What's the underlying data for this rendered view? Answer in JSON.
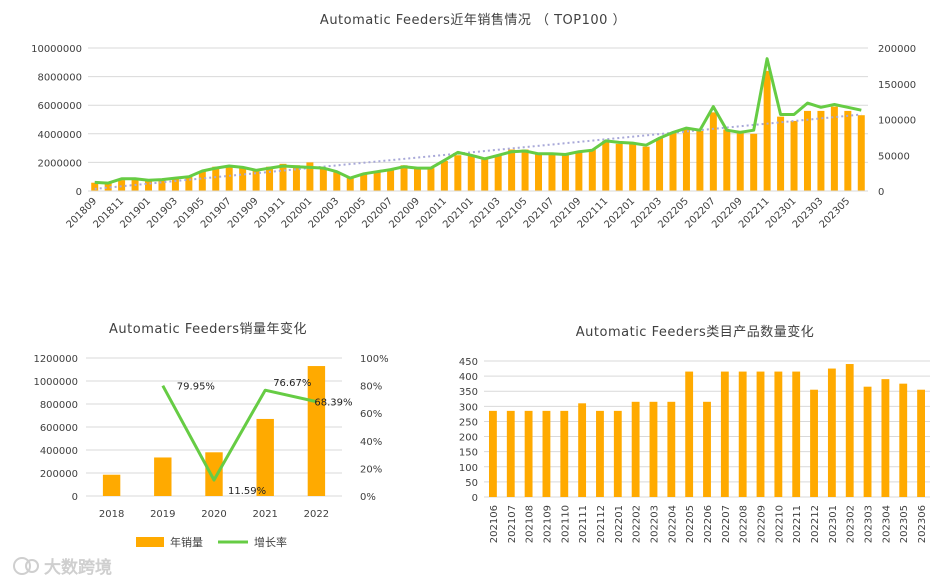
{
  "colors": {
    "bar": "#FFAA00",
    "line": "#66CC44",
    "trend": "#A8A8D8",
    "grid": "#D9D9D9"
  },
  "watermark": "大数跨境",
  "chart_data": [
    {
      "type": "bar+line",
      "title": "Automatic  Feeders近年销售情况 （ TOP100 ）",
      "categories": [
        "201809",
        "201810",
        "201811",
        "201812",
        "201901",
        "201902",
        "201903",
        "201904",
        "201905",
        "201906",
        "201907",
        "201908",
        "201909",
        "201910",
        "201911",
        "201912",
        "202001",
        "202002",
        "202003",
        "202004",
        "202005",
        "202006",
        "202007",
        "202008",
        "202009",
        "202010",
        "202011",
        "202012",
        "202101",
        "202102",
        "202103",
        "202104",
        "202105",
        "202106",
        "202107",
        "202108",
        "202109",
        "202110",
        "202111",
        "202112",
        "202201",
        "202202",
        "202203",
        "202204",
        "202205",
        "202206",
        "202207",
        "202208",
        "202209",
        "202210",
        "202211",
        "202212",
        "202301",
        "202302",
        "202303",
        "202304",
        "202305",
        "202306"
      ],
      "xtick_labels": [
        "201809",
        "201811",
        "201901",
        "201903",
        "201905",
        "201907",
        "201909",
        "201911",
        "202001",
        "202003",
        "202005",
        "202007",
        "202009",
        "202011",
        "202101",
        "202103",
        "202105",
        "202107",
        "202109",
        "202111",
        "202201",
        "202203",
        "202205",
        "202207",
        "202209",
        "202211",
        "202301",
        "202303",
        "202305"
      ],
      "bars": [
        580000,
        540000,
        760000,
        800000,
        760000,
        820000,
        900000,
        1000000,
        1400000,
        1700000,
        1800000,
        1700000,
        1500000,
        1700000,
        1900000,
        1800000,
        2000000,
        1600000,
        1300000,
        1000000,
        1200000,
        1300000,
        1500000,
        1800000,
        1600000,
        1600000,
        2100000,
        2500000,
        2500000,
        2200000,
        2500000,
        2900000,
        2900000,
        2600000,
        2600000,
        2600000,
        2700000,
        2900000,
        3500000,
        3300000,
        3300000,
        3100000,
        3700000,
        4100000,
        4300000,
        4200000,
        5500000,
        4300000,
        4100000,
        4000000,
        8400000,
        5200000,
        4900000,
        5600000,
        5600000,
        5900000,
        5600000,
        5300000
      ],
      "line": [
        12000,
        11000,
        17000,
        17000,
        15000,
        16000,
        18000,
        20000,
        28000,
        32000,
        35000,
        33000,
        29000,
        32000,
        35000,
        34000,
        33000,
        32000,
        27000,
        18000,
        24000,
        27000,
        30000,
        34000,
        32000,
        32000,
        43000,
        54000,
        50000,
        45000,
        50000,
        55000,
        56000,
        52000,
        52000,
        51000,
        55000,
        57000,
        70000,
        68000,
        67000,
        64000,
        74000,
        82000,
        88000,
        85000,
        118000,
        85000,
        82000,
        85000,
        185000,
        107000,
        107000,
        123000,
        117000,
        121000,
        117000,
        113000
      ],
      "y_left": {
        "ticks": [
          "0",
          "2000000",
          "4000000",
          "6000000",
          "8000000",
          "10000000"
        ],
        "min": 0,
        "max": 10000000
      },
      "y_right": {
        "ticks": [
          "0",
          "50000",
          "100000",
          "150000",
          "200000"
        ],
        "min": 0,
        "max": 200000
      },
      "trendline": true
    },
    {
      "type": "bar+line",
      "title": "Automatic  Feeders销量年变化",
      "categories": [
        "2018",
        "2019",
        "2020",
        "2021",
        "2022"
      ],
      "series": [
        {
          "name": "年销量",
          "type": "bar",
          "values": [
            185000,
            335000,
            380000,
            670000,
            1130000
          ]
        },
        {
          "name": "增长率",
          "type": "line",
          "values": [
            null,
            79.95,
            11.59,
            76.67,
            68.39
          ]
        }
      ],
      "data_labels": [
        "79.95%",
        "11.59%",
        "76.67%",
        "68.39%"
      ],
      "y_left": {
        "ticks": [
          "0",
          "200000",
          "400000",
          "600000",
          "800000",
          "1000000",
          "1200000"
        ],
        "min": 0,
        "max": 1200000
      },
      "y_right": {
        "ticks": [
          "0%",
          "20%",
          "40%",
          "60%",
          "80%",
          "100%"
        ],
        "min": 0,
        "max": 100
      },
      "legend": "bottom"
    },
    {
      "type": "bar",
      "title": "Automatic  Feeders类目产品数量变化",
      "categories": [
        "202106",
        "202107",
        "202108",
        "202109",
        "202110",
        "202111",
        "202112",
        "202201",
        "202202",
        "202203",
        "202204",
        "202205",
        "202206",
        "202207",
        "202208",
        "202209",
        "202210",
        "202211",
        "202212",
        "202301",
        "202302",
        "202303",
        "202304",
        "202305",
        "202306"
      ],
      "values": [
        285,
        285,
        285,
        285,
        285,
        310,
        285,
        285,
        315,
        315,
        315,
        415,
        315,
        415,
        415,
        415,
        415,
        415,
        355,
        425,
        440,
        365,
        390,
        375,
        355
      ],
      "y": {
        "ticks": [
          "0",
          "50",
          "100",
          "150",
          "200",
          "250",
          "300",
          "350",
          "400",
          "450"
        ],
        "min": 0,
        "max": 450
      }
    }
  ]
}
